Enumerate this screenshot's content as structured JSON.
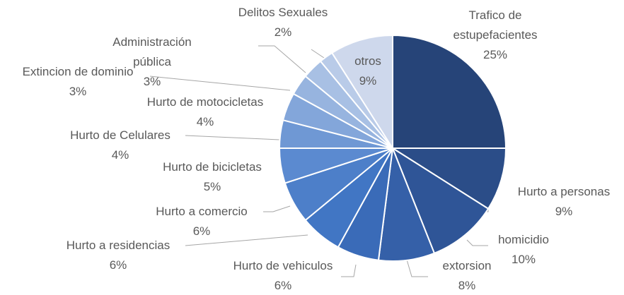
{
  "chart_data": {
    "type": "pie",
    "categories": [
      "Trafico de estupefacientes",
      "Hurto a personas",
      "homicidio",
      "extorsion",
      "Hurto de vehiculos",
      "Hurto a residencias",
      "Hurto a comercio",
      "Hurto de bicicletas",
      "Hurto de Celulares",
      "Hurto de motocicletas",
      "Extincion de dominio",
      "Administración pública",
      "Delitos Sexuales",
      "otros"
    ],
    "values": [
      25,
      9,
      10,
      8,
      6,
      6,
      6,
      5,
      4,
      4,
      3,
      3,
      2,
      9
    ],
    "value_labels": [
      "25%",
      "9%",
      "10%",
      "8%",
      "6%",
      "6%",
      "6%",
      "5%",
      "4%",
      "4%",
      "3%",
      "3%",
      "2%",
      "9%"
    ],
    "colors": [
      "#264478",
      "#2b4d88",
      "#2f5597",
      "#3560a8",
      "#3a6bb8",
      "#4176c4",
      "#4d7fc9",
      "#5b8ad0",
      "#6f98d4",
      "#83a6da",
      "#97b4df",
      "#a8c0e4",
      "#b9cbe8",
      "#ced8ec"
    ]
  }
}
